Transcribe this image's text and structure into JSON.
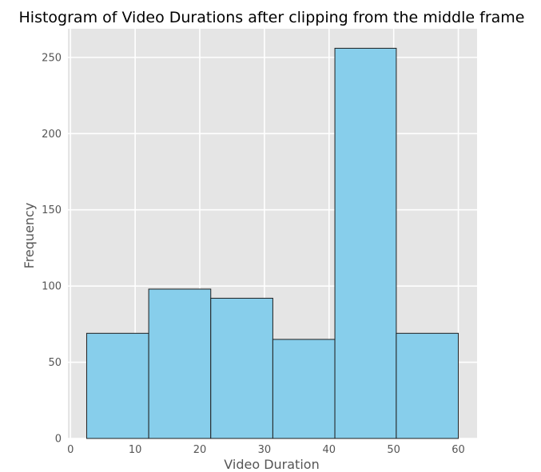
{
  "chart_data": {
    "type": "bar",
    "title": "Histogram of Video Durations after clipping from the middle frame",
    "xlabel": "Video Duration",
    "ylabel": "Frequency",
    "bins": [
      {
        "start": 2.5,
        "end": 12.1,
        "count": 69
      },
      {
        "start": 12.1,
        "end": 21.7,
        "count": 98
      },
      {
        "start": 21.7,
        "end": 31.3,
        "count": 92
      },
      {
        "start": 31.3,
        "end": 40.9,
        "count": 65
      },
      {
        "start": 40.9,
        "end": 50.4,
        "count": 256
      },
      {
        "start": 50.4,
        "end": 60.0,
        "count": 69
      }
    ],
    "xlim": [
      -0.4,
      62.9
    ],
    "ylim": [
      0,
      268.8
    ],
    "xticks": [
      0,
      10,
      20,
      30,
      40,
      50,
      60
    ],
    "yticks": [
      0,
      50,
      100,
      150,
      200,
      250
    ],
    "grid": true,
    "colors": {
      "bar_fill": "#87CEEB",
      "bar_edge": "#1f1f1f",
      "plot_background": "#E5E5E5",
      "grid": "#FFFFFF"
    }
  }
}
